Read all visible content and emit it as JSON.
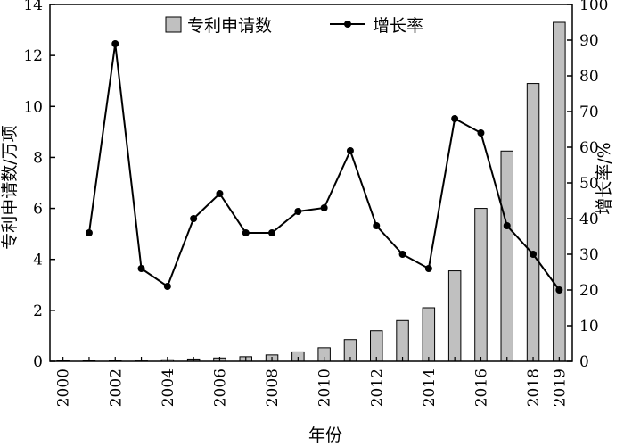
{
  "chart_data": {
    "type": "bar+line",
    "x_label": "年份",
    "y_left_label": "专利申请数/万项",
    "y_right_label": "增长率/%",
    "years": [
      2000,
      2001,
      2002,
      2003,
      2004,
      2005,
      2006,
      2007,
      2008,
      2009,
      2010,
      2011,
      2012,
      2013,
      2014,
      2015,
      2016,
      2017,
      2018,
      2019
    ],
    "x_tick_labels": [
      "2000",
      "2002",
      "2004",
      "2006",
      "2008",
      "2010",
      "2012",
      "2014",
      "2016",
      "2018",
      "2019"
    ],
    "y_left_ticks": [
      "0",
      "2",
      "4",
      "6",
      "8",
      "10",
      "12",
      "14"
    ],
    "y_right_ticks": [
      "0",
      "10",
      "20",
      "30",
      "40",
      "50",
      "60",
      "70",
      "80",
      "90",
      "100"
    ],
    "ylim_left": [
      0,
      14
    ],
    "ylim_right": [
      0,
      100
    ],
    "bar_series": {
      "name": "专利申请数",
      "color": "#c0c0c0",
      "values": [
        0.02,
        0.02,
        0.03,
        0.04,
        0.06,
        0.09,
        0.13,
        0.18,
        0.25,
        0.37,
        0.53,
        0.85,
        1.2,
        1.6,
        2.1,
        3.55,
        6.0,
        8.25,
        10.9,
        13.3
      ]
    },
    "line_series": {
      "name": "增长率",
      "color": "#000000",
      "x": [
        2001,
        2002,
        2003,
        2004,
        2005,
        2006,
        2007,
        2008,
        2009,
        2010,
        2011,
        2012,
        2013,
        2014,
        2015,
        2016,
        2017,
        2018,
        2019
      ],
      "values": [
        36,
        89,
        26,
        21,
        40,
        47,
        36,
        36,
        42,
        43,
        59,
        38,
        30,
        26,
        68,
        64,
        38,
        30,
        20
      ]
    },
    "legend_position": "top"
  }
}
